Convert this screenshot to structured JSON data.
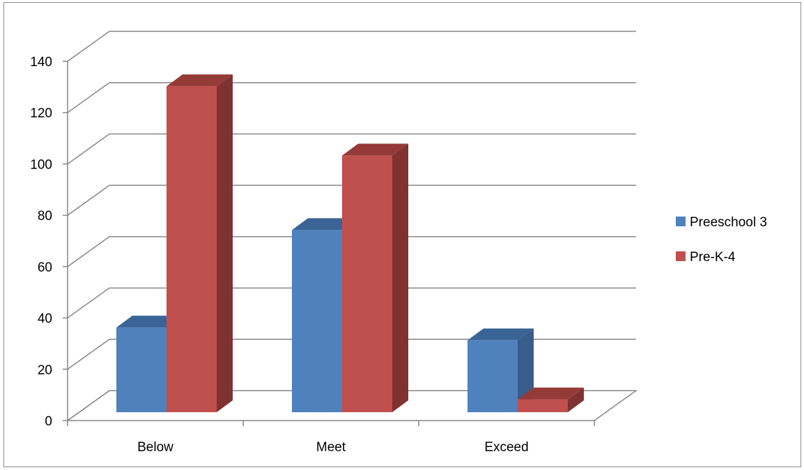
{
  "chart_data": {
    "type": "bar",
    "style": "3d-clustered-column",
    "title": "",
    "xlabel": "",
    "ylabel": "",
    "categories": [
      "Below",
      "Meet",
      "Exceed"
    ],
    "series": [
      {
        "name": "Preeschool 3",
        "values": [
          33,
          71,
          28
        ],
        "color": "#4f81bd",
        "side_color": "#385d8a",
        "top_color": "#3a6496"
      },
      {
        "name": "Pre-K-4",
        "values": [
          127,
          100,
          5
        ],
        "color": "#c0504d",
        "side_color": "#7f3230",
        "top_color": "#943a37"
      }
    ],
    "ylim": [
      0,
      140
    ],
    "yticks": [
      0,
      20,
      40,
      60,
      80,
      100,
      120,
      140
    ],
    "grid": true,
    "legend_position": "right"
  }
}
